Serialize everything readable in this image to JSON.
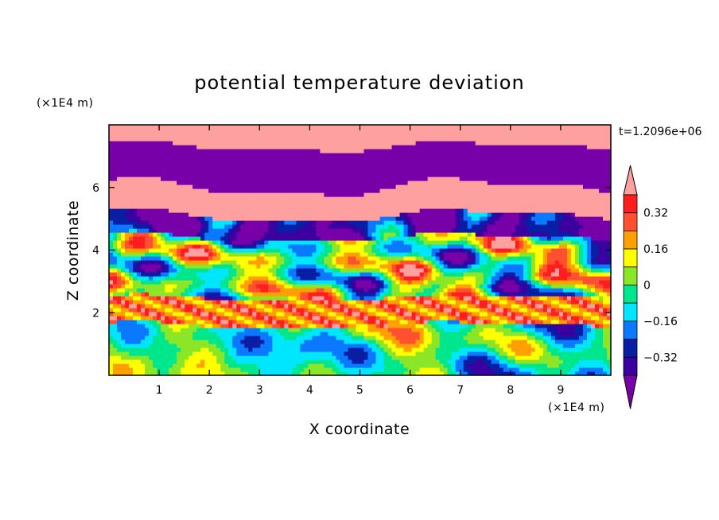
{
  "chart_data": {
    "type": "heatmap",
    "title": "potential temperature deviation",
    "xlabel": "X coordinate",
    "ylabel": "Z coordinate",
    "x_unit": "(×1E4 m)",
    "y_unit": "(×1E4 m)",
    "time_label": "t=1.2096e+06",
    "xlim": [
      0,
      10
    ],
    "ylim": [
      0,
      8
    ],
    "x_ticks": [
      "1",
      "2",
      "3",
      "4",
      "5",
      "6",
      "7",
      "8",
      "9"
    ],
    "y_ticks": [
      "2",
      "4",
      "6"
    ],
    "colorbar": {
      "levels": [
        -0.4,
        -0.32,
        -0.24,
        -0.16,
        -0.08,
        0,
        0.08,
        0.16,
        0.24,
        0.32,
        0.4
      ],
      "tick_labels": [
        "0.32",
        "0.16",
        "0",
        "−0.16",
        "−0.32"
      ],
      "colors": [
        "#7800a8",
        "#3c00a0",
        "#0a1ea5",
        "#0a78ff",
        "#00e6ff",
        "#00e68c",
        "#8ce628",
        "#ffff00",
        "#ffa000",
        "#ff5032",
        "#ff1e1e",
        "#ffa0a0"
      ],
      "extend": "both"
    },
    "field_description_bands": [
      {
        "z": [
          7.3,
          8.0
        ],
        "value": "high"
      },
      {
        "z": [
          6.0,
          7.3
        ],
        "value": "low"
      },
      {
        "z": [
          5.0,
          6.0
        ],
        "value": "high"
      },
      {
        "z": [
          4.3,
          5.0
        ],
        "value": "low"
      },
      {
        "z": [
          2.5,
          4.3
        ],
        "value": "mixed"
      },
      {
        "z": [
          1.5,
          2.5
        ],
        "value": "high"
      },
      {
        "z": [
          0.0,
          1.5
        ],
        "value": "mixed"
      }
    ]
  }
}
